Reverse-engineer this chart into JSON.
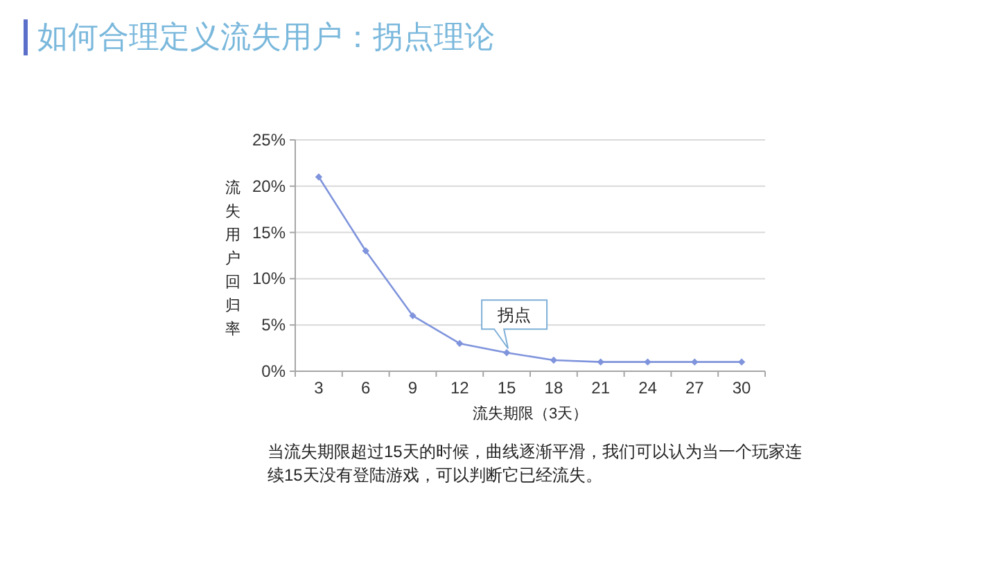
{
  "chart_data": {
    "type": "line",
    "title": "如何合理定义流失用户：拐点理论",
    "xlabel": "流失期限（3天）",
    "ylabel": "流失用户回归率",
    "categories": [
      "3",
      "6",
      "9",
      "12",
      "15",
      "18",
      "21",
      "24",
      "27",
      "30"
    ],
    "series": [
      {
        "color": "#7f94dc",
        "values": [
          21,
          13,
          6,
          3,
          2,
          1.2,
          1,
          1,
          1,
          1
        ]
      }
    ],
    "ylim": [
      0,
      25
    ],
    "yticks": [
      {
        "value": 0,
        "label": "0%"
      },
      {
        "value": 5,
        "label": "5%"
      },
      {
        "value": 10,
        "label": "10%"
      },
      {
        "value": 15,
        "label": "15%"
      },
      {
        "value": 20,
        "label": "20%"
      },
      {
        "value": 25,
        "label": "25%"
      }
    ],
    "grid": "y",
    "marker": "diamond",
    "line_style": "solid",
    "annotations": [
      {
        "text": "拐点",
        "x": "15",
        "y": 2
      },
      "当流失期限超过15天的时候，曲线逐渐平滑，我们可以认为当一个玩家连续15天没有登陆游戏，可以判断它已经流失。"
    ]
  }
}
